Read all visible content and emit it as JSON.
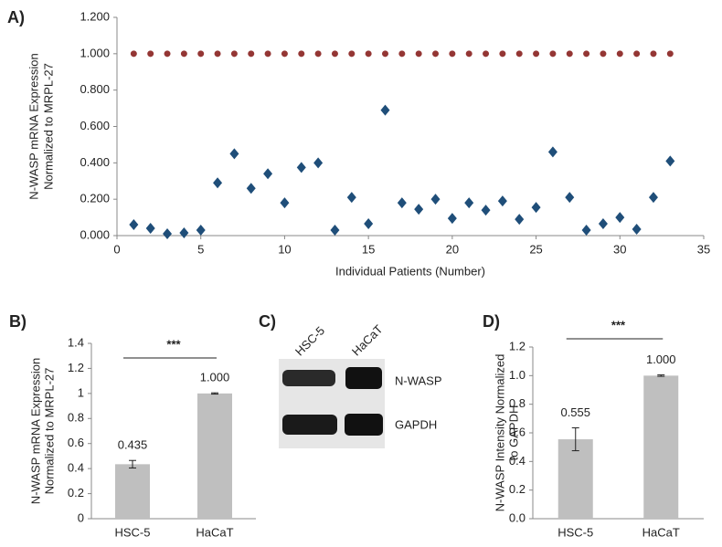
{
  "chart_data": [
    {
      "panel_label": "A)",
      "type": "scatter",
      "ylabel": [
        "N-WASP mRNA Expression",
        "Normalized to MRPL-27"
      ],
      "xlabel": "Individual Patients (Number)",
      "x": [
        1,
        2,
        3,
        4,
        5,
        6,
        7,
        8,
        9,
        10,
        11,
        12,
        13,
        14,
        15,
        16,
        17,
        18,
        19,
        20,
        21,
        22,
        23,
        24,
        25,
        26,
        27,
        28,
        29,
        30,
        31,
        32,
        33
      ],
      "series": [
        {
          "color": "#943634",
          "shape": "circle",
          "values": [
            1,
            1,
            1,
            1,
            1,
            1,
            1,
            1,
            1,
            1,
            1,
            1,
            1,
            1,
            1,
            1,
            1,
            1,
            1,
            1,
            1,
            1,
            1,
            1,
            1,
            1,
            1,
            1,
            1,
            1,
            1,
            1,
            1
          ]
        },
        {
          "color": "#1f4e79",
          "shape": "diamond",
          "values": [
            0.06,
            0.04,
            0.01,
            0.015,
            0.03,
            0.29,
            0.45,
            0.26,
            0.34,
            0.18,
            0.375,
            0.4,
            0.03,
            0.21,
            0.065,
            0.69,
            0.18,
            0.145,
            0.2,
            0.095,
            0.18,
            0.14,
            0.19,
            0.09,
            0.155,
            0.46,
            0.21,
            0.03,
            0.065,
            0.1,
            0.035,
            0.21,
            0.41
          ]
        }
      ],
      "xlim": [
        0,
        35
      ],
      "xticks": [
        0,
        5,
        10,
        15,
        20,
        25,
        30,
        35
      ],
      "ylim": [
        0,
        1.2
      ],
      "yticks": [
        {
          "value": 0,
          "label": "0.000"
        },
        {
          "value": 0.2,
          "label": "0.200"
        },
        {
          "value": 0.4,
          "label": "0.400"
        },
        {
          "value": 0.6,
          "label": "0.600"
        },
        {
          "value": 0.8,
          "label": "0.800"
        },
        {
          "value": 1,
          "label": "1.000"
        },
        {
          "value": 1.2,
          "label": "1.200"
        }
      ]
    },
    {
      "panel_label": "B)",
      "type": "bar",
      "ylabel": [
        "N-WASP mRNA Expression",
        "Normalized to MRPL-27"
      ],
      "categories": [
        "HSC-5",
        "HaCaT"
      ],
      "values": [
        0.435,
        1
      ],
      "value_labels": [
        "0.435",
        "1.000"
      ],
      "errors": [
        0.03,
        0.005
      ],
      "color": "#bfbfbf",
      "annotation": "***",
      "ylim": [
        0,
        1.4
      ],
      "yticks": [
        0,
        0.2,
        0.4,
        0.6,
        0.8,
        1,
        1.2,
        1.4
      ]
    },
    {
      "panel_label": "D)",
      "type": "bar",
      "ylabel": [
        "N-WASP Intensity Normalized",
        "to GAPDH"
      ],
      "categories": [
        "HSC-5",
        "HaCaT"
      ],
      "values": [
        0.555,
        1
      ],
      "value_labels": [
        "0.555",
        "1.000"
      ],
      "errors": [
        0.08,
        0.005
      ],
      "color": "#bfbfbf",
      "annotation": "***",
      "ylim": [
        0,
        1.2
      ],
      "yticks": [
        {
          "value": 0,
          "label": "0.0"
        },
        0.2,
        0.4,
        0.6,
        0.8,
        {
          "value": 1,
          "label": "1.0"
        },
        1.2
      ]
    }
  ],
  "blot": {
    "panel_label": "C)",
    "lanes": [
      "HSC-5",
      "HaCaT"
    ],
    "bands": [
      "N-WASP",
      "GAPDH"
    ]
  }
}
